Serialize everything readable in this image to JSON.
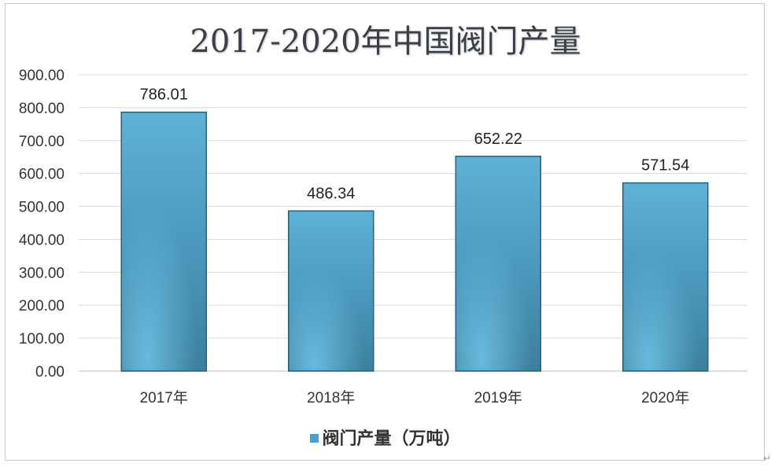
{
  "chart_data": {
    "type": "bar",
    "title": "2017-2020年中国阀门产量",
    "categories": [
      "2017年",
      "2018年",
      "2019年",
      "2020年"
    ],
    "series": [
      {
        "name": "阀门产量（万吨）",
        "values": [
          786.01,
          486.34,
          652.22,
          571.54
        ]
      }
    ],
    "data_labels": [
      "786.01",
      "486.34",
      "652.22",
      "571.54"
    ],
    "y_ticks": [
      "0.00",
      "100.00",
      "200.00",
      "300.00",
      "400.00",
      "500.00",
      "600.00",
      "700.00",
      "800.00",
      "900.00"
    ],
    "ylim": [
      0,
      900
    ],
    "grid": true,
    "legend_position": "bottom",
    "colors": {
      "bar": "#4aa0c8",
      "bar_dark": "#3b7e98",
      "grid": "#d9d9d9"
    }
  }
}
